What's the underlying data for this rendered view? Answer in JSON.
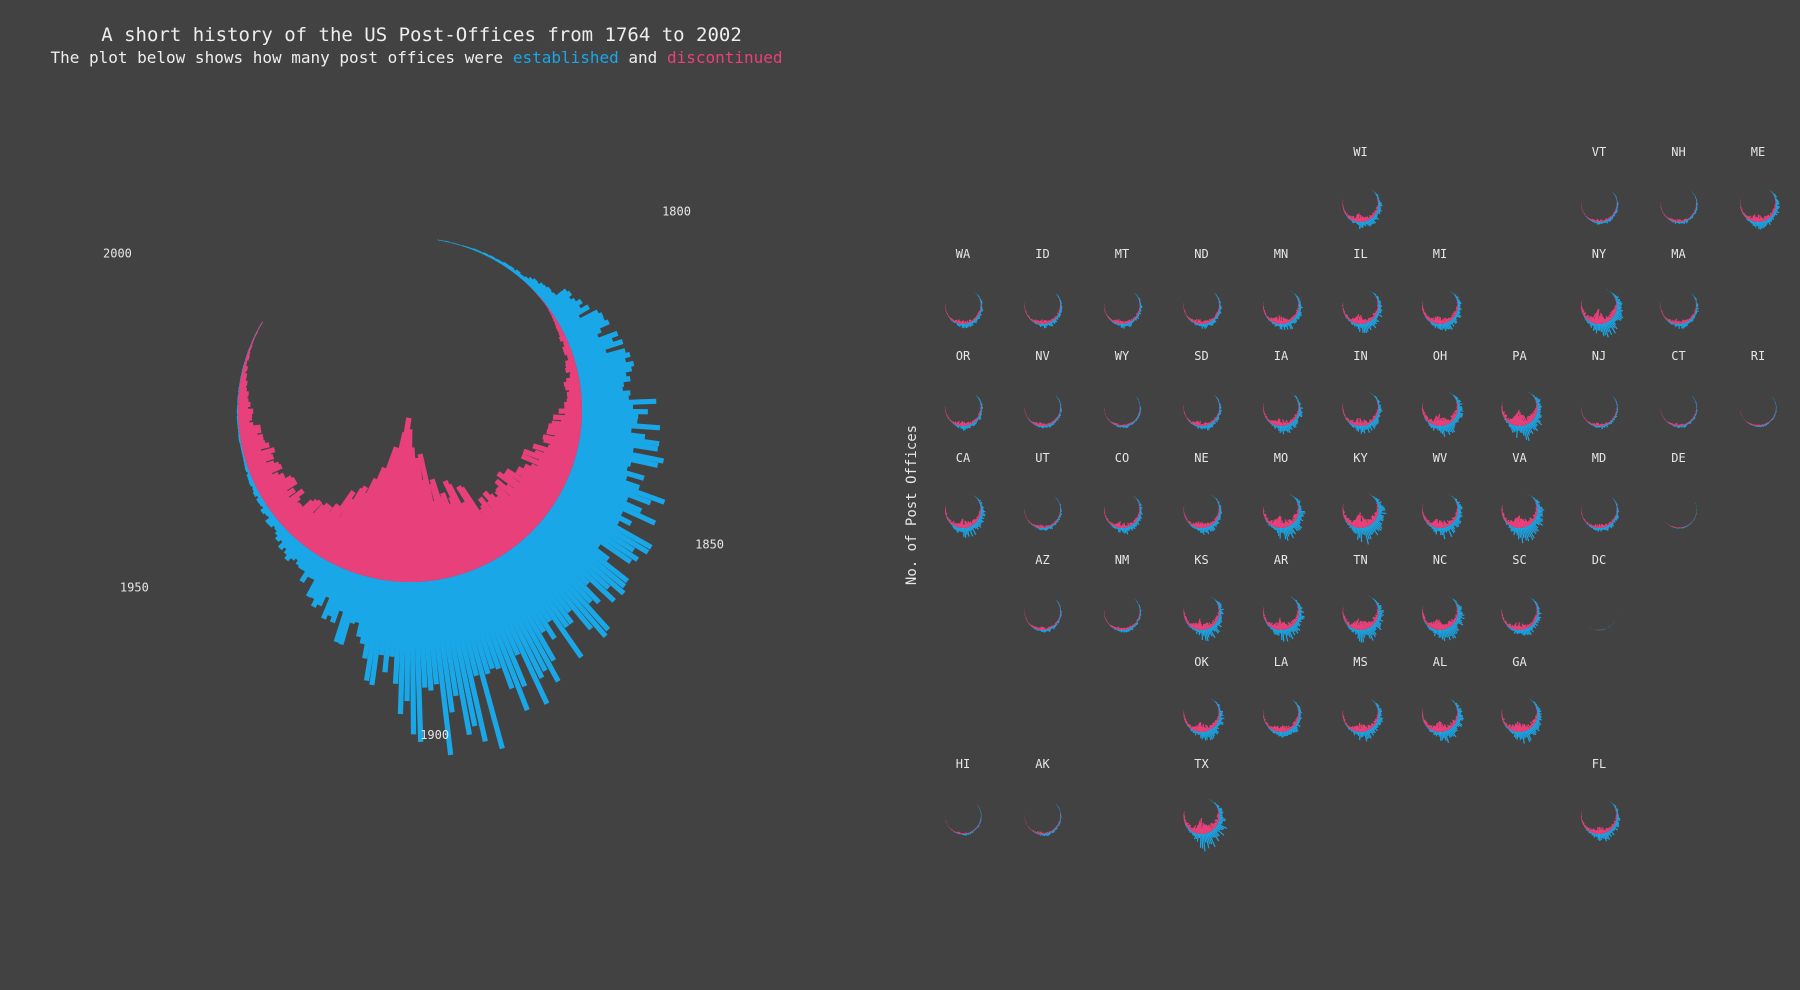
{
  "title": "A short history of the US Post-Offices from 1764 to 2002",
  "subtitle": {
    "prefix": "The plot below shows how many post offices were ",
    "established": "established",
    "and": " and ",
    "discontinued": "discontinued"
  },
  "colors": {
    "background": "#424242",
    "established": "#19a7e8",
    "discontinued": "#e8407a",
    "text": "#e6e6e6"
  },
  "chart_data": [
    {
      "type": "bar",
      "projection": "polar",
      "year_labels": [
        "2000",
        "1800",
        "1950",
        "1850",
        "1900"
      ],
      "year_range": [
        1764,
        2002
      ],
      "series": [
        {
          "name": "established",
          "color": "#19a7e8",
          "x": [
            1770,
            1790,
            1800,
            1810,
            1820,
            1830,
            1840,
            1850,
            1860,
            1870,
            1880,
            1890,
            1900,
            1910,
            1920,
            1930,
            1940,
            1950,
            1960,
            1970,
            1980,
            1990,
            2000
          ],
          "values": [
            5,
            30,
            150,
            260,
            330,
            430,
            500,
            580,
            620,
            720,
            900,
            1000,
            980,
            600,
            350,
            180,
            90,
            40,
            20,
            10,
            5,
            3,
            2
          ]
        },
        {
          "name": "discontinued",
          "color": "#e8407a",
          "x": [
            1770,
            1790,
            1800,
            1810,
            1820,
            1830,
            1840,
            1850,
            1860,
            1870,
            1880,
            1890,
            1900,
            1910,
            1920,
            1930,
            1940,
            1950,
            1960,
            1970,
            1980,
            1990,
            2000
          ],
          "values": [
            0,
            0,
            5,
            40,
            80,
            150,
            220,
            330,
            360,
            380,
            520,
            660,
            800,
            1000,
            780,
            460,
            260,
            210,
            200,
            140,
            70,
            20,
            5
          ]
        }
      ]
    },
    {
      "type": "bar",
      "projection": "polar",
      "facet": "state",
      "ylabel": "No. of Post Offices",
      "states": [
        {
          "abbr": "WI",
          "row": 0,
          "col": 5,
          "size": 0.5
        },
        {
          "abbr": "VT",
          "row": 0,
          "col": 8,
          "size": 0.2
        },
        {
          "abbr": "NH",
          "row": 0,
          "col": 9,
          "size": 0.2
        },
        {
          "abbr": "ME",
          "row": 0,
          "col": 10,
          "size": 0.5
        },
        {
          "abbr": "WA",
          "row": 1,
          "col": 0,
          "size": 0.3
        },
        {
          "abbr": "ID",
          "row": 1,
          "col": 1,
          "size": 0.3
        },
        {
          "abbr": "MT",
          "row": 1,
          "col": 2,
          "size": 0.3
        },
        {
          "abbr": "ND",
          "row": 1,
          "col": 3,
          "size": 0.3
        },
        {
          "abbr": "MN",
          "row": 1,
          "col": 4,
          "size": 0.5
        },
        {
          "abbr": "IL",
          "row": 1,
          "col": 5,
          "size": 0.6
        },
        {
          "abbr": "MI",
          "row": 1,
          "col": 6,
          "size": 0.6
        },
        {
          "abbr": "NY",
          "row": 1,
          "col": 8,
          "size": 0.9
        },
        {
          "abbr": "MA",
          "row": 1,
          "col": 9,
          "size": 0.3
        },
        {
          "abbr": "OR",
          "row": 2,
          "col": 0,
          "size": 0.3
        },
        {
          "abbr": "NV",
          "row": 2,
          "col": 1,
          "size": 0.2
        },
        {
          "abbr": "WY",
          "row": 2,
          "col": 2,
          "size": 0.15
        },
        {
          "abbr": "SD",
          "row": 2,
          "col": 3,
          "size": 0.3
        },
        {
          "abbr": "IA",
          "row": 2,
          "col": 4,
          "size": 0.5
        },
        {
          "abbr": "IN",
          "row": 2,
          "col": 5,
          "size": 0.5
        },
        {
          "abbr": "OH",
          "row": 2,
          "col": 6,
          "size": 0.8
        },
        {
          "abbr": "PA",
          "row": 2,
          "col": 7,
          "size": 1.0
        },
        {
          "abbr": "NJ",
          "row": 2,
          "col": 8,
          "size": 0.2
        },
        {
          "abbr": "CT",
          "row": 2,
          "col": 9,
          "size": 0.15
        },
        {
          "abbr": "RI",
          "row": 2,
          "col": 10,
          "size": 0.1
        },
        {
          "abbr": "CA",
          "row": 3,
          "col": 0,
          "size": 0.6
        },
        {
          "abbr": "UT",
          "row": 3,
          "col": 1,
          "size": 0.2
        },
        {
          "abbr": "CO",
          "row": 3,
          "col": 2,
          "size": 0.4
        },
        {
          "abbr": "NE",
          "row": 3,
          "col": 3,
          "size": 0.4
        },
        {
          "abbr": "MO",
          "row": 3,
          "col": 4,
          "size": 0.8
        },
        {
          "abbr": "KY",
          "row": 3,
          "col": 5,
          "size": 1.0
        },
        {
          "abbr": "WV",
          "row": 3,
          "col": 6,
          "size": 0.7
        },
        {
          "abbr": "VA",
          "row": 3,
          "col": 7,
          "size": 0.9
        },
        {
          "abbr": "MD",
          "row": 3,
          "col": 8,
          "size": 0.3
        },
        {
          "abbr": "DE",
          "row": 3,
          "col": 9,
          "size": 0.05
        },
        {
          "abbr": "AZ",
          "row": 4,
          "col": 1,
          "size": 0.2
        },
        {
          "abbr": "NM",
          "row": 4,
          "col": 2,
          "size": 0.2
        },
        {
          "abbr": "KS",
          "row": 4,
          "col": 3,
          "size": 0.7
        },
        {
          "abbr": "AR",
          "row": 4,
          "col": 4,
          "size": 0.7
        },
        {
          "abbr": "TN",
          "row": 4,
          "col": 5,
          "size": 0.8
        },
        {
          "abbr": "NC",
          "row": 4,
          "col": 6,
          "size": 0.8
        },
        {
          "abbr": "SC",
          "row": 4,
          "col": 7,
          "size": 0.5
        },
        {
          "abbr": "DC",
          "row": 4,
          "col": 8,
          "size": 0.02
        },
        {
          "abbr": "OK",
          "row": 5,
          "col": 3,
          "size": 0.6
        },
        {
          "abbr": "LA",
          "row": 5,
          "col": 4,
          "size": 0.5
        },
        {
          "abbr": "MS",
          "row": 5,
          "col": 5,
          "size": 0.6
        },
        {
          "abbr": "AL",
          "row": 5,
          "col": 6,
          "size": 0.7
        },
        {
          "abbr": "GA",
          "row": 5,
          "col": 7,
          "size": 0.7
        },
        {
          "abbr": "HI",
          "row": 6,
          "col": 0,
          "size": 0.1
        },
        {
          "abbr": "AK",
          "row": 6,
          "col": 1,
          "size": 0.15
        },
        {
          "abbr": "TX",
          "row": 6,
          "col": 3,
          "size": 1.0
        },
        {
          "abbr": "FL",
          "row": 6,
          "col": 8,
          "size": 0.5
        }
      ]
    }
  ]
}
